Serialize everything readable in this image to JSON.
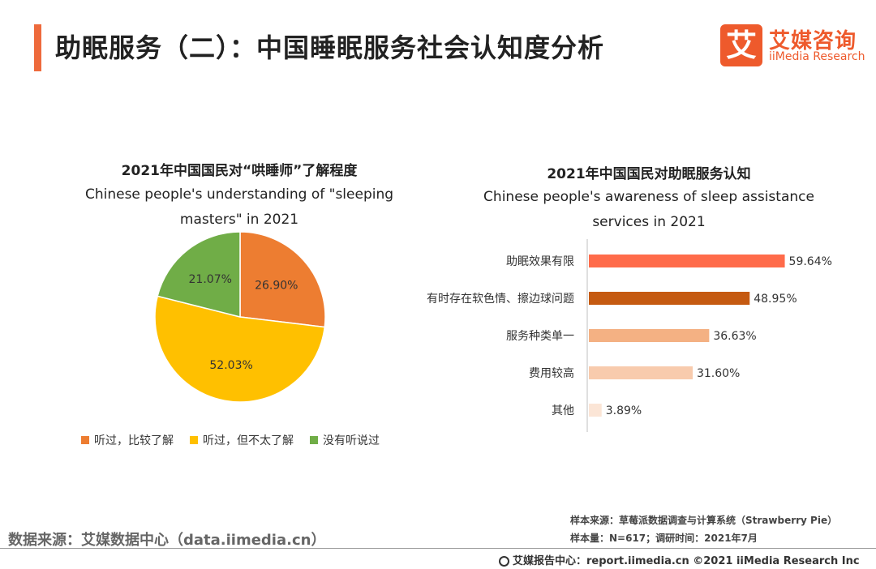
{
  "page": {
    "title": "助眠服务（二）：中国睡眠服务社会认知度分析",
    "accent_color": "#ee6a3c",
    "logo": {
      "cn": "艾媒咨询",
      "en": "iiMedia Research",
      "mark": "艾"
    }
  },
  "chart_data": [
    {
      "type": "pie",
      "title": "2021年中国国民对“哄睡师”了解程度",
      "subtitle_line1": "Chinese people's understanding of \"sleeping",
      "subtitle_line2": "masters\" in 2021",
      "slices": [
        {
          "label": "听过，比较了解",
          "value": 26.9,
          "display": "26.90%",
          "color": "#ed7d31"
        },
        {
          "label": "听过，但不太了解",
          "value": 52.03,
          "display": "52.03%",
          "color": "#ffc000"
        },
        {
          "label": "没有听说过",
          "value": 21.07,
          "display": "21.07%",
          "color": "#70ad47"
        }
      ],
      "legend_position": "bottom"
    },
    {
      "type": "bar",
      "orientation": "horizontal",
      "title": "2021年中国国民对助眠服务认知",
      "subtitle_line1": "Chinese people's awareness of sleep assistance",
      "subtitle_line2": "services in 2021",
      "categories": [
        "助眠效果有限",
        "有时存在软色情、擦边球问题",
        "服务种类单一",
        "费用较高",
        "其他"
      ],
      "values": [
        59.64,
        48.95,
        36.63,
        31.6,
        3.89
      ],
      "labels": [
        "59.64%",
        "48.95%",
        "36.63%",
        "31.60%",
        "3.89%"
      ],
      "colors": [
        "#ff6b4a",
        "#c55a11",
        "#f4b183",
        "#f8cbad",
        "#fbe5d6"
      ],
      "xlim": [
        0,
        100
      ],
      "grid": false
    }
  ],
  "source": {
    "left": "数据来源：艾媒数据中心（data.iimedia.cn）",
    "sample_source": "样本来源：草莓派数据调查与计算系统（Strawberry Pie）",
    "sample_size": "样本量：N=617；调研时间：2021年7月"
  },
  "footer": {
    "text": "艾媒报告中心：report.iimedia.cn  ©2021  iiMedia Research  Inc"
  }
}
